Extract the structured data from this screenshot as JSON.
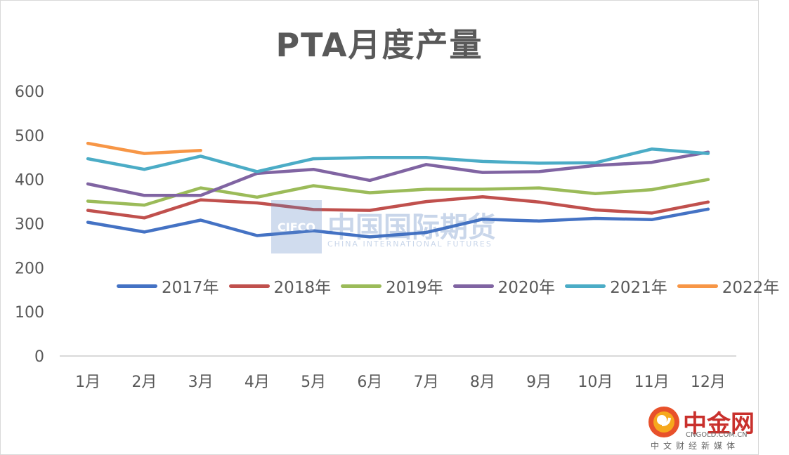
{
  "chart_data": {
    "type": "line",
    "title": "PTA月度产量",
    "xlabel": "",
    "ylabel": "",
    "ylim": [
      0,
      600
    ],
    "yticks": [
      "0",
      "100",
      "200",
      "300",
      "400",
      "500",
      "600"
    ],
    "categories": [
      "1月",
      "2月",
      "3月",
      "4月",
      "5月",
      "6月",
      "7月",
      "8月",
      "9月",
      "10月",
      "11月",
      "12月"
    ],
    "grid": false,
    "legend_position": "middle",
    "series": [
      {
        "name": "2017年",
        "color": "#4472c4",
        "values": [
          303,
          281,
          308,
          273,
          284,
          270,
          280,
          310,
          306,
          312,
          309,
          333
        ]
      },
      {
        "name": "2018年",
        "color": "#c0504d",
        "values": [
          330,
          313,
          354,
          347,
          332,
          330,
          350,
          361,
          349,
          331,
          324,
          349
        ]
      },
      {
        "name": "2019年",
        "color": "#9bbb59",
        "values": [
          351,
          342,
          381,
          360,
          386,
          370,
          378,
          378,
          381,
          368,
          377,
          400
        ]
      },
      {
        "name": "2020年",
        "color": "#8064a2",
        "values": [
          390,
          364,
          364,
          414,
          423,
          398,
          434,
          416,
          418,
          432,
          439,
          462
        ]
      },
      {
        "name": "2021年",
        "color": "#4bacc6",
        "values": [
          447,
          423,
          453,
          418,
          447,
          450,
          450,
          441,
          437,
          438,
          469,
          459
        ]
      },
      {
        "name": "2022年",
        "color": "#f79646",
        "values": [
          482,
          459,
          466,
          null,
          null,
          null,
          null,
          null,
          null,
          null,
          null,
          null
        ]
      }
    ]
  },
  "watermark": {
    "box_text": "CIFCO",
    "cn_text": "中国国际期货",
    "en_text": "CHINA INTERNATIONAL FUTURES"
  },
  "logo": {
    "cn_text": "中金网",
    "url_text": "CNGOLD.COM.CN",
    "slogan": "中文财经新媒体",
    "color": "#c9302c"
  }
}
